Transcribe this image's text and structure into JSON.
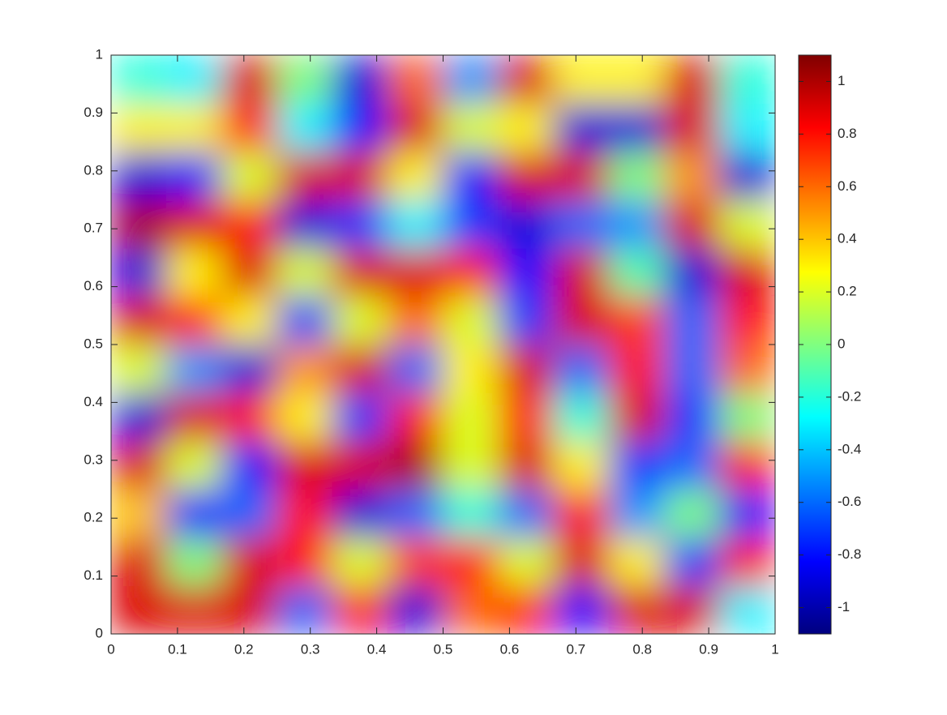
{
  "chart_data": {
    "type": "heatmap",
    "colormap": "jet",
    "xlim": [
      0,
      1
    ],
    "ylim": [
      0,
      1
    ],
    "xticks": [
      0,
      0.1,
      0.2,
      0.3,
      0.4,
      0.5,
      0.6,
      0.7,
      0.8,
      0.9,
      1
    ],
    "yticks": [
      0,
      0.1,
      0.2,
      0.3,
      0.4,
      0.5,
      0.6,
      0.7,
      0.8,
      0.9,
      1
    ],
    "clim": [
      -1.1,
      1.1
    ],
    "cticks": [
      -1,
      -0.8,
      -0.6,
      -0.4,
      -0.2,
      0,
      0.2,
      0.4,
      0.6,
      0.8,
      1
    ],
    "values": [
      [
        0.9,
        0.9,
        0.9,
        -0.6,
        0.8,
        -0.9,
        0.6,
        0.8,
        -0.8,
        0.9,
        0.9,
        -0.3
      ],
      [
        0.9,
        0.0,
        0.9,
        0.8,
        0.2,
        0.7,
        0.8,
        0.2,
        0.9,
        0.3,
        -0.7,
        0.8
      ],
      [
        0.4,
        -0.8,
        -0.6,
        0.8,
        -0.9,
        -0.6,
        -0.2,
        -0.6,
        0.8,
        -0.5,
        0.0,
        -0.8
      ],
      [
        0.9,
        0.2,
        -0.8,
        0.9,
        0.9,
        1.0,
        0.2,
        0.9,
        0.3,
        -0.7,
        -0.6,
        0.8
      ],
      [
        -0.9,
        0.9,
        0.8,
        0.3,
        -0.7,
        0.8,
        0.2,
        0.8,
        -0.2,
        0.9,
        -0.7,
        0.0
      ],
      [
        0.2,
        -0.5,
        -0.9,
        0.5,
        0.9,
        -0.6,
        0.3,
        0.9,
        -0.6,
        0.8,
        -0.6,
        0.6
      ],
      [
        0.9,
        0.8,
        0.3,
        -0.7,
        0.2,
        0.6,
        0.2,
        -0.7,
        0.9,
        0.7,
        -0.6,
        0.8
      ],
      [
        -0.9,
        0.3,
        0.9,
        0.2,
        0.9,
        0.9,
        0.8,
        -0.8,
        0.9,
        -0.1,
        -0.9,
        0.9
      ],
      [
        1.0,
        0.9,
        0.8,
        -0.9,
        -0.7,
        -0.3,
        -0.7,
        -0.9,
        -0.6,
        -0.5,
        0.9,
        0.2
      ],
      [
        -0.9,
        -0.8,
        0.2,
        0.9,
        0.9,
        0.3,
        -0.8,
        0.9,
        0.9,
        0.0,
        0.5,
        -0.9
      ],
      [
        0.3,
        0.3,
        0.8,
        -0.3,
        -0.8,
        0.9,
        0.2,
        0.3,
        -0.9,
        -0.9,
        0.9,
        -0.3
      ],
      [
        -0.2,
        -0.3,
        0.9,
        0.0,
        -0.9,
        0.6,
        -0.5,
        0.9,
        0.3,
        0.3,
        0.9,
        -0.2
      ]
    ]
  }
}
